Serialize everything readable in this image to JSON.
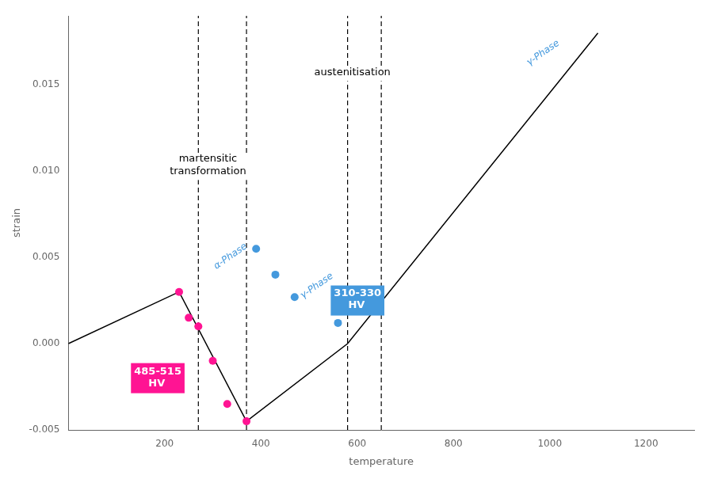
{
  "chart_data": {
    "type": "line",
    "xlabel": "temperature",
    "ylabel": "strain",
    "xlim": [
      0,
      1300
    ],
    "ylim": [
      -0.005,
      0.019
    ],
    "xticks": [
      200,
      400,
      600,
      800,
      1000,
      1200
    ],
    "yticks": [
      -0.005,
      {
        "value": 0,
        "label": "0.000"
      },
      0.005,
      {
        "value": 0.01,
        "label": "0.010"
      },
      {
        "value": 0.015,
        "label": "0.015"
      }
    ],
    "grid": false,
    "series": [
      {
        "type": "line",
        "color": "#000000",
        "line_style": "solid",
        "x": [
          0,
          230,
          370,
          580,
          1100
        ],
        "values": [
          0,
          0.003,
          -0.0045,
          0.0,
          0.018
        ]
      },
      {
        "type": "scatter",
        "color": "#FF1493",
        "marker": "circle",
        "x": [
          230,
          250,
          270,
          300,
          330,
          370
        ],
        "values": [
          0.003,
          0.0015,
          0.001,
          -0.001,
          -0.0035,
          -0.0045
        ]
      },
      {
        "type": "scatter",
        "color": "#4499DD",
        "marker": "circle",
        "x": [
          390,
          430,
          470,
          560
        ],
        "values": [
          0.0055,
          0.004,
          0.0027,
          0.0012
        ]
      }
    ],
    "vlines": {
      "x": [
        270,
        370,
        580,
        650
      ],
      "color": "#000000",
      "line_style": "dashed"
    },
    "annotations": [
      {
        "text": "martensitic\ntransformation",
        "x": 290,
        "y": 0.011
      },
      {
        "text": "austenitisation",
        "x": 590,
        "y": 0.016
      }
    ],
    "phase_labels": [
      {
        "text": "α-Phase",
        "x": 310,
        "y": 0.0042,
        "color": "#4499DD"
      },
      {
        "text": "γ-Phase",
        "x": 490,
        "y": 0.0025,
        "color": "#4499DD"
      },
      {
        "text": "γ-Phase",
        "x": 960,
        "y": 0.016,
        "color": "#4499DD"
      }
    ],
    "boxes": [
      {
        "text": "485-515\n    HV",
        "x": 130,
        "y": -0.002,
        "color": "#FF1493"
      },
      {
        "text": "310-330\n    HV",
        "x": 545,
        "y": 0.0025,
        "color": "#4499DD"
      }
    ]
  }
}
